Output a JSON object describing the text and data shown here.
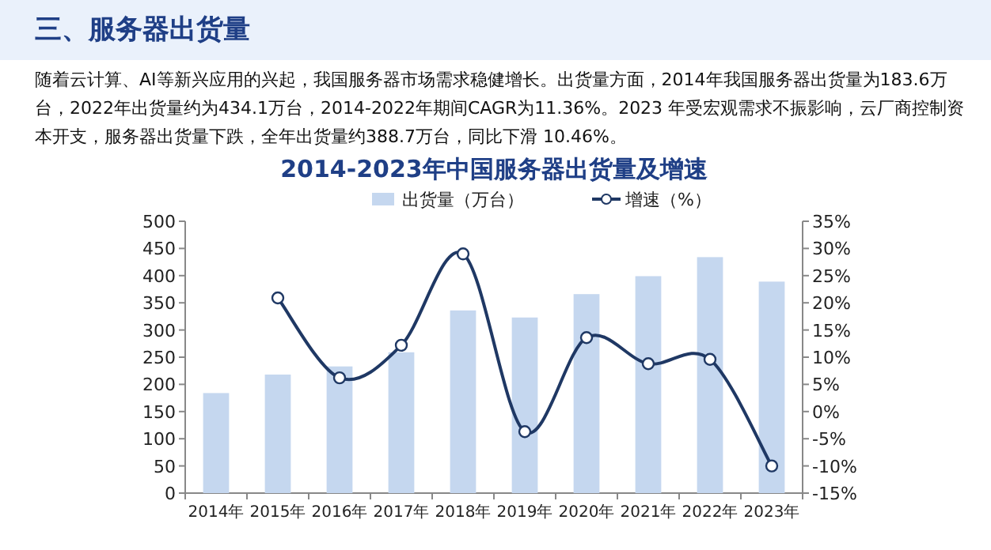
{
  "chart_data": {
    "type": "bar",
    "title": "2014-2023年中国服务器出货量及增速",
    "subtitle": "随着云计算、AI等新兴应用的兴起，我国服务器市场需求稳健增长。出货量方面，2014年我国服务器出货量为183.6万台，2022年出货量约为434.1万台，2014-2022年期间CAGR为11.36%。2023 年受宏观需求不振影响，云厂商控制资本开支，服务器出货量下跌，全年出货量约388.7万台，同比下滑 10.46%。",
    "annotations": [
      "三、服务器出货量"
    ],
    "categories": [
      "2014年",
      "2015年",
      "2016年",
      "2017年",
      "2018年",
      "2019年",
      "2020年",
      "2021年",
      "2022年",
      "2023年"
    ],
    "series": [
      {
        "name": "出货量（万台）",
        "color": "#c5d7ef",
        "values": [
          184,
          218,
          233,
          259,
          336,
          323,
          366,
          399,
          434,
          389
        ]
      },
      {
        "name": "增速（%）",
        "type": "line",
        "axis": "y2",
        "color": "#1f3864",
        "marker": "circle",
        "values": [
          null,
          20.9,
          6.2,
          12.2,
          29,
          -3.7,
          13.6,
          8.8,
          9.6,
          -10
        ]
      }
    ],
    "ylim": [
      0,
      500
    ],
    "yticks": [
      0,
      50,
      100,
      150,
      200,
      250,
      300,
      350,
      400,
      450,
      500
    ],
    "y2lim": [
      -15,
      35
    ],
    "y2ticks": [
      {
        "value": -15,
        "label": "-15%"
      },
      {
        "value": -10,
        "label": "-10%"
      },
      {
        "value": -5,
        "label": "-5%"
      },
      {
        "value": 0,
        "label": "0%"
      },
      {
        "value": 5,
        "label": "5%"
      },
      {
        "value": 10,
        "label": "10%"
      },
      {
        "value": 15,
        "label": "15%"
      },
      {
        "value": 20,
        "label": "20%"
      },
      {
        "value": 25,
        "label": "25%"
      },
      {
        "value": 30,
        "label": "30%"
      },
      {
        "value": 35,
        "label": "35%"
      }
    ],
    "legend": "top",
    "grid": false
  }
}
